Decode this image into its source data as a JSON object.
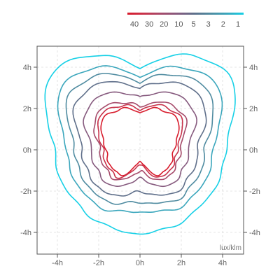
{
  "chart_data": {
    "type": "contour",
    "unit_label": "lux/klm",
    "x_range": [
      -5,
      5
    ],
    "y_range": [
      -5,
      5
    ],
    "grid": true,
    "legend_position": "top-right",
    "x_ticks": [
      {
        "value": -4,
        "label": "-4h"
      },
      {
        "value": -2,
        "label": "-2h"
      },
      {
        "value": 0,
        "label": "0h"
      },
      {
        "value": 2,
        "label": "2h"
      },
      {
        "value": 4,
        "label": "4h"
      }
    ],
    "y_ticks": [
      {
        "value": 4,
        "label": "4h"
      },
      {
        "value": 2,
        "label": "2h"
      },
      {
        "value": 0,
        "label": "0h"
      },
      {
        "value": -2,
        "label": "-2h"
      },
      {
        "value": -4,
        "label": "-4h"
      }
    ],
    "levels": [
      {
        "value": 40,
        "label": "40",
        "color": "#d81b2c",
        "top": 2.05,
        "side": 1.65,
        "bottom": 0.55
      },
      {
        "value": 30,
        "label": "30",
        "color": "#c8324a",
        "top": 2.2,
        "side": 1.8,
        "bottom": 0.7
      },
      {
        "value": 20,
        "label": "20",
        "color": "#a64a6a",
        "top": 2.35,
        "side": 1.95,
        "bottom": 1.05
      },
      {
        "value": 10,
        "label": "10",
        "color": "#865a7e",
        "top": 2.85,
        "side": 2.35,
        "bottom": 1.4
      },
      {
        "value": 5,
        "label": "5",
        "color": "#5f6f8a",
        "top": 3.35,
        "side": 2.8,
        "bottom": 2.05
      },
      {
        "value": 3,
        "label": "3",
        "color": "#4f8ba0",
        "top": 3.7,
        "side": 3.15,
        "bottom": 2.55
      },
      {
        "value": 2,
        "label": "2",
        "color": "#3aa6bc",
        "top": 4.0,
        "side": 3.55,
        "bottom": 3.0
      },
      {
        "value": 1,
        "label": "1",
        "color": "#16d0e6",
        "top": 4.5,
        "side": 4.15,
        "bottom": 4.05
      }
    ],
    "legend_colors": [
      "#d81b2c",
      "#c8324a",
      "#a64a6a",
      "#865a7e",
      "#5f6f8a",
      "#4f8ba0",
      "#3aa6bc",
      "#16d0e6"
    ]
  }
}
